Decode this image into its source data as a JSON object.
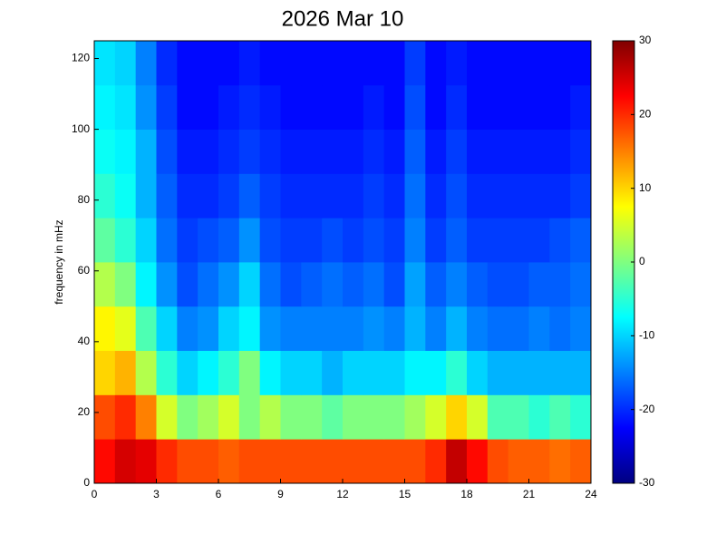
{
  "chart_data": {
    "type": "heatmap",
    "title": "2026 Mar 10",
    "y_label": "frequency in mHz",
    "colormap": "jet",
    "xlim": [
      0,
      24
    ],
    "xticks": [
      0,
      3,
      6,
      9,
      12,
      15,
      18,
      21,
      24
    ],
    "ylim": [
      0,
      125
    ],
    "yticks": [
      0,
      20,
      40,
      60,
      80,
      100,
      120
    ],
    "clim": [
      -30,
      30
    ],
    "cticks": [
      -30,
      -20,
      -10,
      0,
      10,
      20,
      30
    ],
    "xbins": [
      0,
      1,
      2,
      3,
      4,
      5,
      6,
      7,
      8,
      9,
      10,
      11,
      12,
      13,
      14,
      15,
      16,
      17,
      18,
      19,
      20,
      21,
      22,
      23,
      24
    ],
    "ybins": [
      0,
      12.5,
      25,
      37.5,
      50,
      62.5,
      75,
      87.5,
      100,
      112.5,
      125
    ],
    "z": [
      [
        22,
        25,
        24,
        20,
        18,
        18,
        17,
        18,
        18,
        18,
        18,
        18,
        18,
        18,
        18,
        18,
        20,
        26,
        22,
        18,
        17,
        17,
        16,
        17
      ],
      [
        18,
        20,
        15,
        5,
        0,
        2,
        5,
        0,
        3,
        0,
        0,
        -2,
        0,
        0,
        0,
        2,
        5,
        10,
        5,
        -3,
        -3,
        -5,
        -3,
        -5
      ],
      [
        10,
        12,
        3,
        -5,
        -10,
        -8,
        -5,
        0,
        -8,
        -10,
        -10,
        -12,
        -10,
        -10,
        -10,
        -8,
        -8,
        -5,
        -10,
        -12,
        -12,
        -12,
        -12,
        -12
      ],
      [
        8,
        6,
        -3,
        -10,
        -15,
        -14,
        -10,
        -8,
        -14,
        -15,
        -15,
        -15,
        -15,
        -14,
        -15,
        -12,
        -15,
        -12,
        -15,
        -16,
        -16,
        -15,
        -16,
        -15
      ],
      [
        3,
        0,
        -8,
        -14,
        -18,
        -16,
        -14,
        -10,
        -16,
        -18,
        -17,
        -16,
        -17,
        -16,
        -18,
        -13,
        -17,
        -15,
        -17,
        -18,
        -18,
        -17,
        -17,
        -16
      ],
      [
        -2,
        -5,
        -10,
        -16,
        -19,
        -18,
        -17,
        -14,
        -18,
        -19,
        -19,
        -18,
        -19,
        -18,
        -19,
        -15,
        -19,
        -17,
        -19,
        -19,
        -19,
        -19,
        -18,
        -17
      ],
      [
        -5,
        -7,
        -12,
        -17,
        -20,
        -20,
        -19,
        -17,
        -19,
        -20,
        -20,
        -20,
        -20,
        -19,
        -20,
        -16,
        -20,
        -18,
        -20,
        -20,
        -20,
        -20,
        -20,
        -19
      ],
      [
        -7,
        -8,
        -12,
        -18,
        -21,
        -21,
        -20,
        -19,
        -20,
        -21,
        -21,
        -21,
        -21,
        -20,
        -21,
        -17,
        -21,
        -19,
        -21,
        -21,
        -21,
        -21,
        -21,
        -20
      ],
      [
        -8,
        -9,
        -14,
        -19,
        -22,
        -22,
        -21,
        -20,
        -21,
        -22,
        -22,
        -22,
        -22,
        -21,
        -22,
        -18,
        -22,
        -20,
        -22,
        -22,
        -22,
        -22,
        -22,
        -21
      ],
      [
        -9,
        -10,
        -15,
        -20,
        -22,
        -22,
        -22,
        -21,
        -22,
        -22,
        -22,
        -22,
        -22,
        -22,
        -22,
        -19,
        -22,
        -21,
        -22,
        -22,
        -22,
        -22,
        -22,
        -22
      ]
    ]
  }
}
